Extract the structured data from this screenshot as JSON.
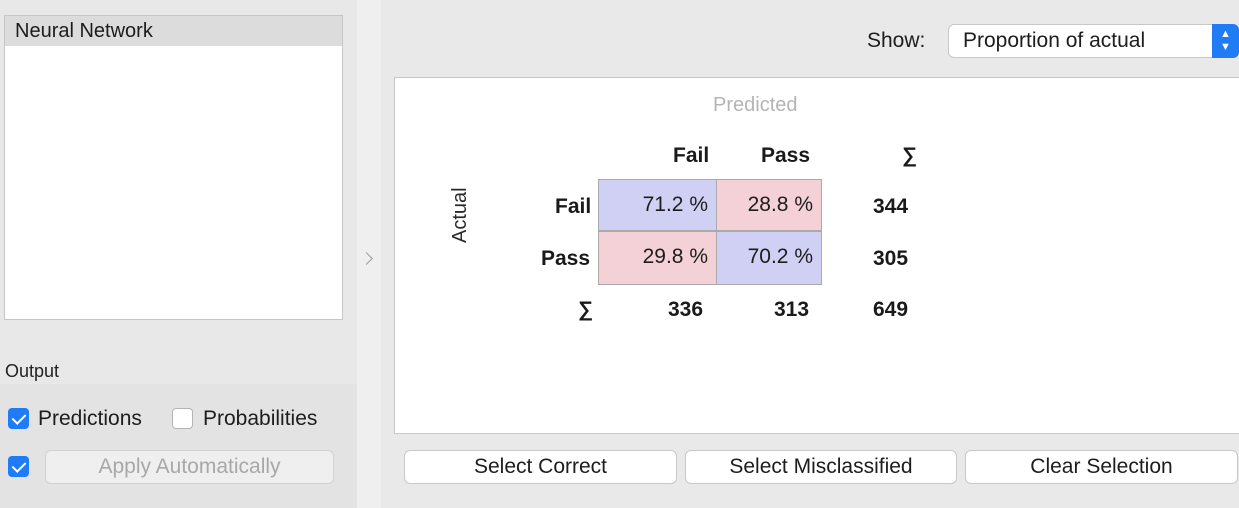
{
  "models": {
    "items": [
      "Neural Network"
    ]
  },
  "output": {
    "section_label": "Output",
    "predictions": {
      "label": "Predictions",
      "checked": true
    },
    "probabilities": {
      "label": "Probabilities",
      "checked": false
    },
    "auto_apply": {
      "checked": true
    },
    "apply_button_label": "Apply Automatically"
  },
  "show": {
    "label": "Show:",
    "selected": "Proportion of actual"
  },
  "matrix": {
    "predicted_label": "Predicted",
    "actual_label": "Actual",
    "column_headers": [
      "Fail",
      "Pass"
    ],
    "row_headers": [
      "Fail",
      "Pass"
    ],
    "sum_symbol": "∑",
    "cells": [
      [
        "71.2 %",
        "28.8 %"
      ],
      [
        "29.8 %",
        "70.2 %"
      ]
    ],
    "row_totals": [
      "344",
      "305"
    ],
    "column_totals": [
      "336",
      "313"
    ],
    "grand_total": "649",
    "colors": {
      "correct": "#d0d0f5",
      "wrong": "#f3d1d6"
    }
  },
  "buttons": {
    "select_correct": "Select Correct",
    "select_misclassified": "Select Misclassified",
    "clear_selection": "Clear Selection"
  },
  "colors": {
    "accent": "#1f7cf5"
  }
}
